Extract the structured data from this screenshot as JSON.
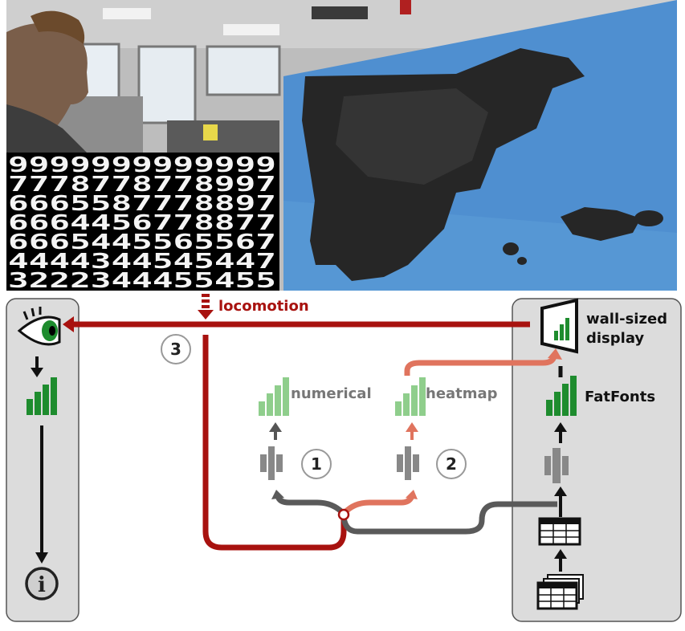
{
  "photo": {
    "digit_rows": [
      "9999999999999",
      "7778778778997",
      "6665587778897",
      "6664456778877",
      "6665445565567",
      "4444344545447",
      "3222344455455"
    ]
  },
  "labels": {
    "locomotion": "locomotion",
    "numerical": "numerical",
    "heatmap": "heatmap",
    "fatfonts": "FatFonts",
    "wall_line1": "wall-sized",
    "wall_line2": "display",
    "step1": "1",
    "step2": "2",
    "step3": "3",
    "info_glyph": "i"
  },
  "colors": {
    "path_red": "#a8120f",
    "path_salmon": "#e0745e",
    "path_gray": "#5a5a5a",
    "bars_green": "#1e8c2e",
    "bars_light_green": "#8fce8c",
    "panel_bg": "#dcdcdc",
    "sky_blue": "#4f8fd0"
  },
  "icons": {
    "eye": "eye-icon",
    "info": "info-icon",
    "filter": "filter-icon",
    "table": "table-icon",
    "table_stack": "table-stack-icon",
    "display": "wall-display-icon"
  }
}
